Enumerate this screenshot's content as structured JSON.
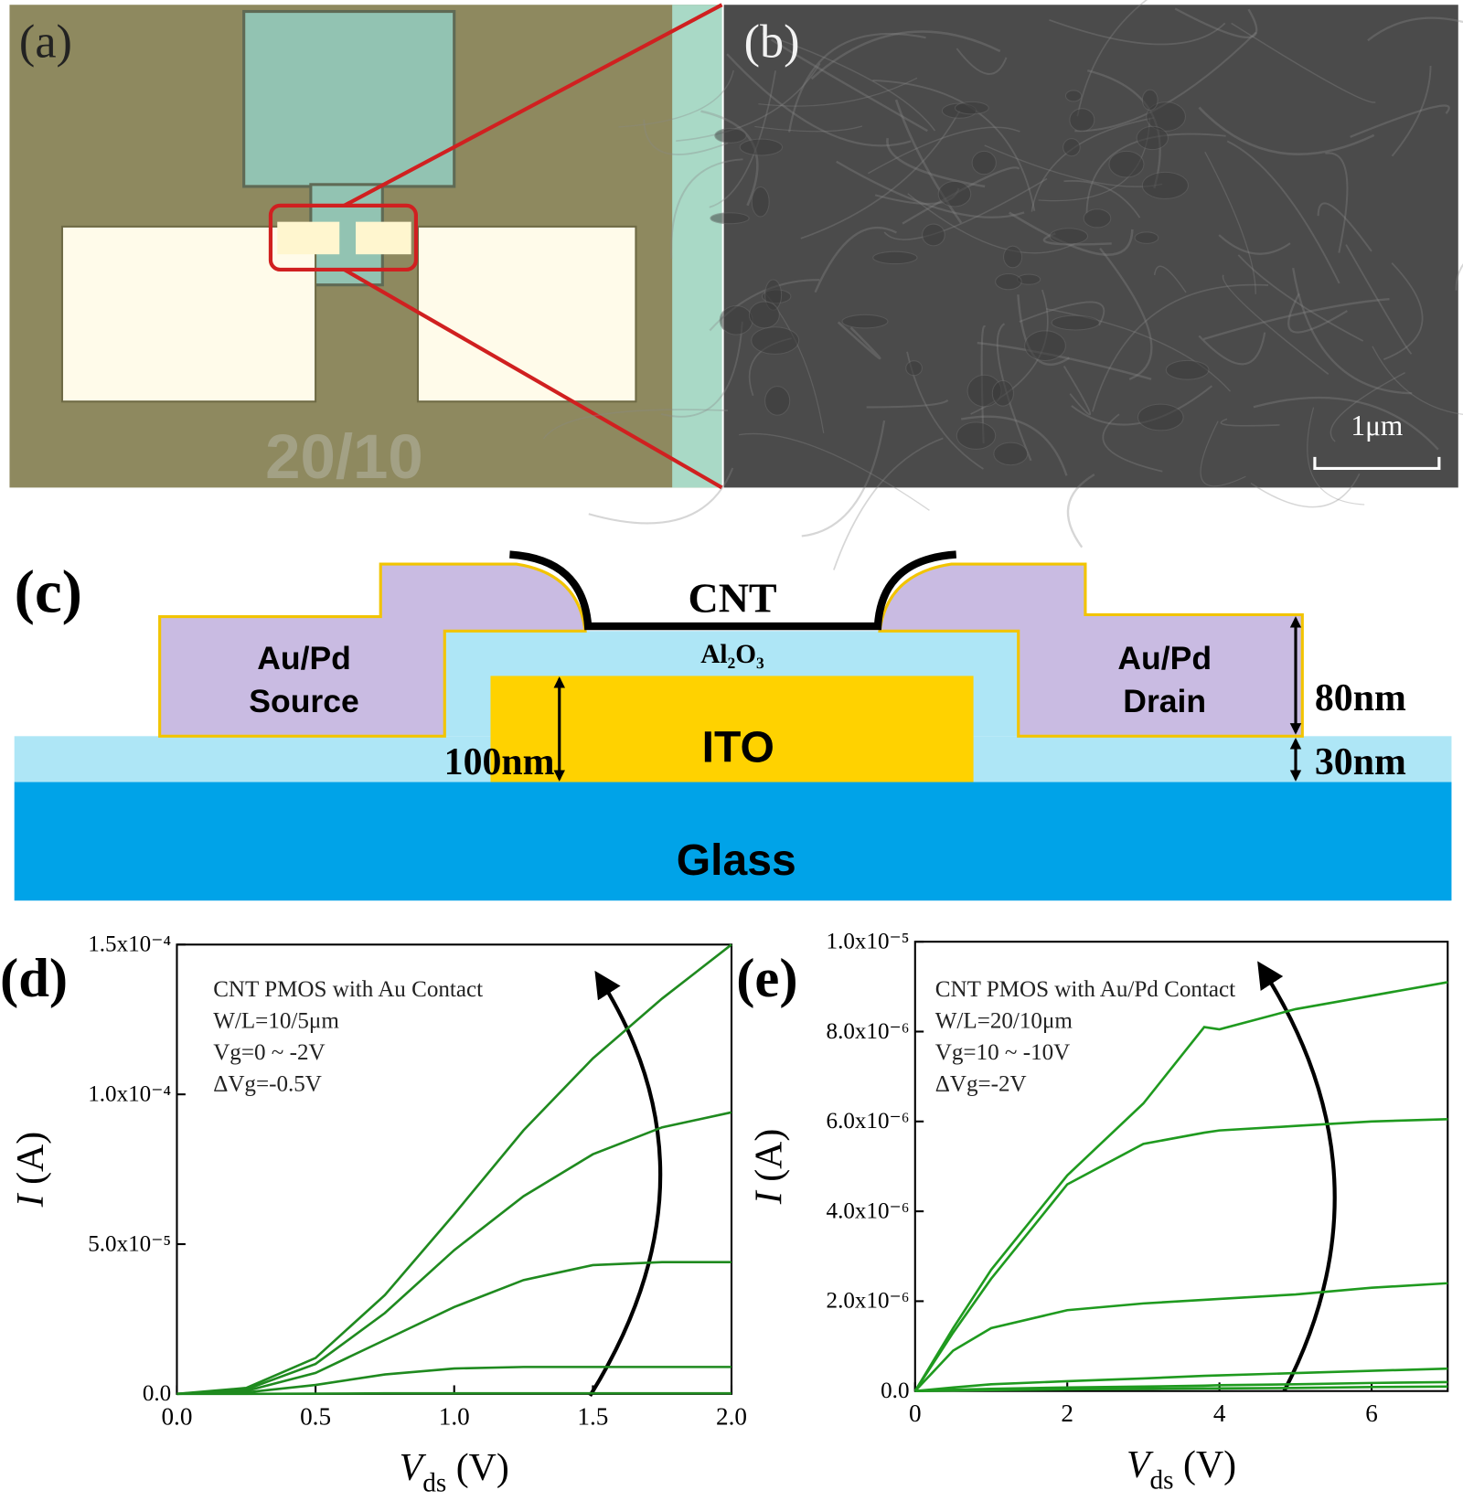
{
  "panels": {
    "a": "(a)",
    "b": "(b)",
    "c": "(c)",
    "d": "(d)",
    "e": "(e)"
  },
  "image_a": {
    "chip_label": "20/10"
  },
  "image_b": {
    "scale_bar": "1μm"
  },
  "diagram": {
    "cnt": "CNT",
    "dielectric": "Al₂O₃",
    "source": [
      "Au/Pd",
      "Source"
    ],
    "drain": [
      "Au/Pd",
      "Drain"
    ],
    "gate": "ITO",
    "gate_thickness": "100nm",
    "electrode_thickness": "80nm",
    "dielectric_thickness": "30nm",
    "substrate": "Glass"
  },
  "chart_data": [
    {
      "type": "line",
      "annotations": [
        "CNT PMOS with Au Contact",
        "W/L=10/5μm",
        "Vg=0 ~ -2V",
        "ΔVg=-0.5V"
      ],
      "x_label": {
        "main": "V",
        "sub": "ds",
        "unit": "(V)"
      },
      "y_label": {
        "main": "I",
        "unit": "(A)"
      },
      "color": "#1f8a1f",
      "x": [
        0,
        0.25,
        0.5,
        0.75,
        1,
        1.25,
        1.5,
        1.75,
        2
      ],
      "series": [
        {
          "values": [
            0,
            2e-06,
            1.2e-05,
            3.3e-05,
            6e-05,
            8.8e-05,
            0.000112,
            0.000132,
            0.00015
          ]
        },
        {
          "values": [
            0,
            1.5e-06,
            1e-05,
            2.7e-05,
            4.8e-05,
            6.6e-05,
            8e-05,
            8.9e-05,
            9.4e-05
          ]
        },
        {
          "values": [
            0,
            1e-06,
            7e-06,
            1.8e-05,
            2.9e-05,
            3.8e-05,
            4.3e-05,
            4.4e-05,
            4.4e-05
          ]
        },
        {
          "values": [
            0,
            5e-07,
            3e-06,
            6.5e-06,
            8.5e-06,
            9e-06,
            9e-06,
            9e-06,
            9e-06
          ]
        },
        {
          "values": [
            0,
            0,
            1e-07,
            2e-07,
            2e-07,
            2e-07,
            2e-07,
            2e-07,
            2e-07
          ]
        }
      ],
      "xlim": [
        0,
        2
      ],
      "ylim": [
        0,
        0.00015
      ],
      "xticks": [
        {
          "value": 0,
          "label": "0.0"
        },
        0.5,
        {
          "value": 1,
          "label": "1.0"
        },
        1.5,
        {
          "value": 2,
          "label": "2.0"
        }
      ],
      "yticks": [
        {
          "value": 0,
          "label": "0.0"
        },
        {
          "value": 5e-05,
          "label": "5.0x10⁻⁵"
        },
        {
          "value": 0.0001,
          "label": "1.0x10⁻⁴"
        },
        {
          "value": 0.00015,
          "label": "1.5x10⁻⁴"
        }
      ]
    },
    {
      "type": "line",
      "annotations": [
        "CNT PMOS with Au/Pd Contact",
        "W/L=20/10μm",
        "Vg=10 ~ -10V",
        "ΔVg=-2V"
      ],
      "x_label": {
        "main": "V",
        "sub": "ds",
        "unit": "(V)"
      },
      "y_label": {
        "main": "I",
        "unit": "(A)"
      },
      "color": "#1f9a1f",
      "x": [
        0,
        0.5,
        1,
        2,
        3,
        3.8,
        4,
        5,
        6,
        7
      ],
      "series": [
        {
          "values": [
            0,
            1.4e-06,
            2.7e-06,
            4.8e-06,
            6.4e-06,
            8.1e-06,
            8.05e-06,
            8.5e-06,
            8.8e-06,
            9.1e-06
          ]
        },
        {
          "values": [
            0,
            1.3e-06,
            2.5e-06,
            4.6e-06,
            5.5e-06,
            5.75e-06,
            5.8e-06,
            5.9e-06,
            6e-06,
            6.05e-06
          ]
        },
        {
          "values": [
            0,
            9e-07,
            1.4e-06,
            1.8e-06,
            1.95e-06,
            2.03e-06,
            2.05e-06,
            2.15e-06,
            2.3e-06,
            2.4e-06
          ]
        },
        {
          "values": [
            0,
            8e-08,
            1.5e-07,
            2.2e-07,
            2.8e-07,
            3.4e-07,
            3.5e-07,
            4e-07,
            4.5e-07,
            5e-07
          ]
        },
        {
          "values": [
            0,
            3e-08,
            5e-08,
            8e-08,
            1e-07,
            1.2e-07,
            1.3e-07,
            1.5e-07,
            1.8e-07,
            2e-07
          ]
        },
        {
          "values": [
            0,
            1e-08,
            2e-08,
            4e-08,
            5e-08,
            6e-08,
            6e-08,
            7e-08,
            9e-08,
            1e-07
          ]
        }
      ],
      "xlim": [
        0,
        7
      ],
      "ylim": [
        0,
        1e-05
      ],
      "xticks": [
        0,
        2,
        4,
        6
      ],
      "yticks": [
        {
          "value": 0,
          "label": "0.0"
        },
        {
          "value": 2e-06,
          "label": "2.0x10⁻⁶"
        },
        {
          "value": 4e-06,
          "label": "4.0x10⁻⁶"
        },
        {
          "value": 6e-06,
          "label": "6.0x10⁻⁶"
        },
        {
          "value": 8e-06,
          "label": "8.0x10⁻⁶"
        },
        {
          "value": 1e-05,
          "label": "1.0x10⁻⁵"
        }
      ]
    }
  ]
}
